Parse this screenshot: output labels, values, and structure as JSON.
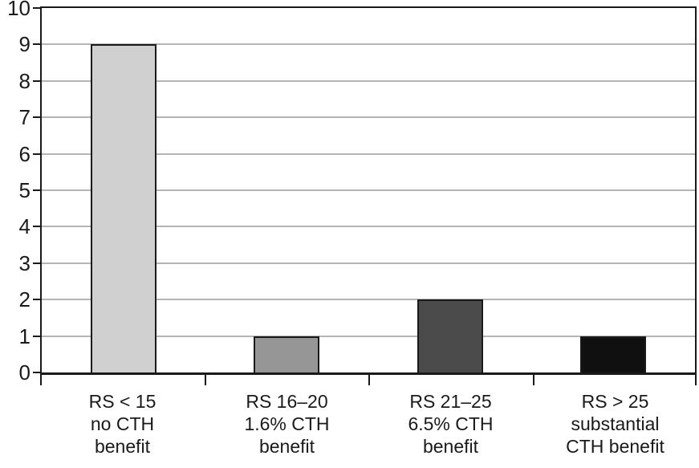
{
  "chart_data": {
    "type": "bar",
    "categories": [
      [
        "RS < 15",
        "no CTH",
        "benefit"
      ],
      [
        "RS 16–20",
        "1.6% CTH",
        "benefit"
      ],
      [
        "RS 21–25",
        "6.5% CTH",
        "benefit"
      ],
      [
        "RS > 25",
        "substantial",
        "CTH benefit"
      ]
    ],
    "values": [
      9,
      1,
      2,
      1
    ],
    "bar_colors": [
      "#d0d0d0",
      "#969696",
      "#4b4b4b",
      "#101010"
    ],
    "bar_border_color": "#1a1a1a",
    "title": "",
    "xlabel": "",
    "ylabel": "",
    "ylim": [
      0,
      10
    ],
    "yticks": [
      0,
      1,
      2,
      3,
      4,
      5,
      6,
      7,
      8,
      9,
      10
    ],
    "grid": true,
    "gridline_color": "#b4b4b4",
    "axis_color": "#1a1a1a",
    "legend_position": "none"
  }
}
